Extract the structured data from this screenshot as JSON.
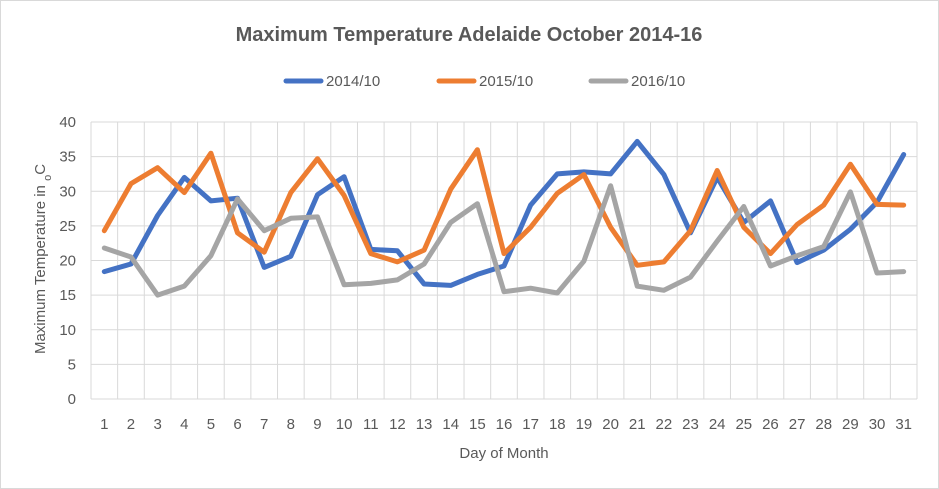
{
  "chart_data": {
    "type": "line",
    "title": "Maximum Temperature Adelaide October 2014-16",
    "xlabel": "Day of Month",
    "ylabel_main": "Maximum Temperature in ",
    "ylabel_sub": "o",
    "ylabel_unit": "C",
    "ylim": [
      0,
      40
    ],
    "yticks": [
      0,
      5,
      10,
      15,
      20,
      25,
      30,
      35,
      40
    ],
    "grid": true,
    "legend_position": "top",
    "categories": [
      "1",
      "2",
      "3",
      "4",
      "5",
      "6",
      "7",
      "8",
      "9",
      "10",
      "11",
      "12",
      "13",
      "14",
      "15",
      "16",
      "17",
      "18",
      "19",
      "20",
      "21",
      "22",
      "23",
      "24",
      "25",
      "26",
      "27",
      "28",
      "29",
      "30",
      "31"
    ],
    "series": [
      {
        "name": "2014/10",
        "color": "#4472c4",
        "values": [
          18.4,
          19.5,
          26.5,
          32.0,
          28.6,
          29.0,
          19.0,
          20.6,
          29.5,
          32.1,
          21.6,
          21.4,
          16.6,
          16.4,
          18.0,
          19.2,
          28.0,
          32.5,
          32.8,
          32.5,
          37.2,
          32.4,
          24.0,
          32.0,
          25.5,
          28.6,
          19.7,
          21.5,
          24.5,
          28.4,
          35.3
        ]
      },
      {
        "name": "2015/10",
        "color": "#ed7d31",
        "values": [
          24.3,
          31.1,
          33.4,
          29.8,
          35.5,
          24.0,
          21.2,
          29.8,
          34.7,
          29.4,
          21.0,
          19.8,
          21.5,
          30.3,
          36.0,
          21.0,
          24.8,
          29.7,
          32.4,
          24.8,
          19.3,
          19.8,
          24.3,
          33.0,
          24.8,
          21.0,
          25.2,
          28.0,
          33.9,
          28.1,
          28.0
        ]
      },
      {
        "name": "2016/10",
        "color": "#a5a5a5",
        "values": [
          21.8,
          20.5,
          15.0,
          16.3,
          20.7,
          28.9,
          24.3,
          26.1,
          26.3,
          16.5,
          16.7,
          17.2,
          19.5,
          25.5,
          28.2,
          15.5,
          16.0,
          15.3,
          19.9,
          30.8,
          16.3,
          15.7,
          17.6,
          22.8,
          27.8,
          19.2,
          20.7,
          22.0,
          29.9,
          18.2,
          18.4
        ]
      }
    ]
  }
}
